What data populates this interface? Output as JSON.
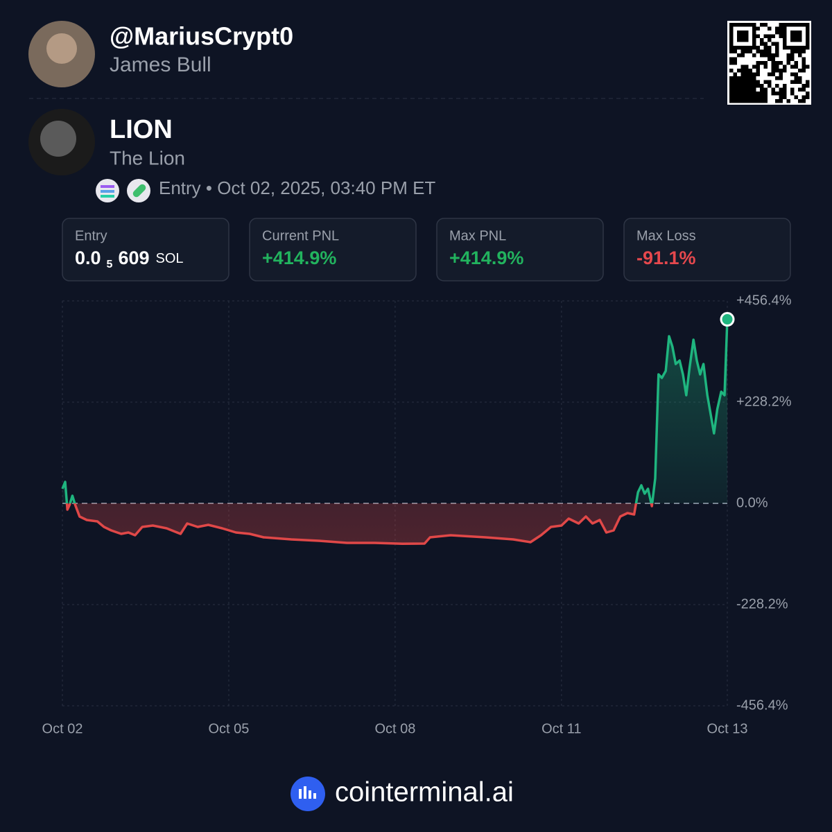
{
  "user": {
    "handle": "@MariusCrypt0",
    "name": "James Bull"
  },
  "token": {
    "symbol": "LION",
    "name": "The Lion",
    "entry_text": "Entry • Oct 02, 2025, 03:40 PM ET"
  },
  "stats": [
    {
      "label": "Entry",
      "value": "0.0",
      "subscript": "5",
      "value_rest": "609",
      "unit": "SOL",
      "color": "#ffffff"
    },
    {
      "label": "Current PNL",
      "value": "+414.9%",
      "color": "#22b35e"
    },
    {
      "label": "Max PNL",
      "value": "+414.9%",
      "color": "#22b35e"
    },
    {
      "label": "Max Loss",
      "value": "-91.1%",
      "color": "#e5484d"
    }
  ],
  "chart_data": {
    "type": "line",
    "x": [
      0,
      0.05,
      0.09,
      0.13,
      0.18,
      0.23,
      0.31,
      0.44,
      0.63,
      0.75,
      0.88,
      1.06,
      1.19,
      1.31,
      1.44,
      1.63,
      1.88,
      2.13,
      2.25,
      2.44,
      2.63,
      2.88,
      3.13,
      3.38,
      3.63,
      4.13,
      4.63,
      5.13,
      5.63,
      6.13,
      6.53,
      6.63,
      7.0,
      7.63,
      8.13,
      8.44,
      8.63,
      8.81,
      9.0,
      9.13,
      9.31,
      9.44,
      9.56,
      9.69,
      9.81,
      9.94,
      10.06,
      10.19,
      10.31,
      10.38,
      10.44,
      10.5,
      10.56,
      10.63,
      10.69,
      10.75,
      10.81,
      10.88,
      10.94,
      11.0,
      11.06,
      11.13,
      11.19,
      11.25,
      11.31,
      11.38,
      11.44,
      11.5,
      11.56,
      11.63,
      11.75,
      11.81,
      11.88,
      11.94,
      11.99
    ],
    "series": [
      {
        "name": "PNL",
        "positive_color": "#1fb57f",
        "negative_color": "#e04848",
        "values": [
          32.8,
          48.5,
          -14.1,
          -3.1,
          17.2,
          -3.1,
          -29.7,
          -37.5,
          -40.6,
          -53.1,
          -61.0,
          -68.8,
          -65.6,
          -71.9,
          -53.1,
          -50.0,
          -56.3,
          -68.8,
          -45.3,
          -53.1,
          -48.5,
          -56.3,
          -65.6,
          -68.8,
          -76.6,
          -81.3,
          -84.4,
          -89.1,
          -89.1,
          -91.1,
          -90.6,
          -76.6,
          -71.9,
          -76.6,
          -81.3,
          -87.5,
          -71.9,
          -53.1,
          -50.0,
          -34.4,
          -45.3,
          -29.7,
          -45.3,
          -37.5,
          -65.6,
          -61.0,
          -29.7,
          -21.9,
          -25.0,
          25.0,
          40.6,
          21.9,
          32.8,
          -6.3,
          56.3,
          290.7,
          282.9,
          298.5,
          376.7,
          353.2,
          314.2,
          322.0,
          290.7,
          243.8,
          306.3,
          368.9,
          322.0,
          290.7,
          314.2,
          243.8,
          157.9,
          212.6,
          251.6,
          243.8,
          414.9
        ]
      }
    ],
    "xlim": [
      0,
      11.99
    ],
    "xticks": [
      {
        "value": 0,
        "label": "Oct 02"
      },
      {
        "value": 3,
        "label": "Oct 05"
      },
      {
        "value": 6,
        "label": "Oct 08"
      },
      {
        "value": 9,
        "label": "Oct 11"
      },
      {
        "value": 11.99,
        "label": "Oct 13"
      }
    ],
    "ylim": [
      -456.4,
      456.4
    ],
    "yticks": [
      {
        "value": 456.4,
        "label": "+456.4%"
      },
      {
        "value": 228.2,
        "label": "+228.2%"
      },
      {
        "value": 0,
        "label": "0.0%"
      },
      {
        "value": -228.2,
        "label": "-228.2%"
      },
      {
        "value": -456.4,
        "label": "-456.4%"
      }
    ],
    "grid": true
  },
  "footer": "cointerminal.ai"
}
